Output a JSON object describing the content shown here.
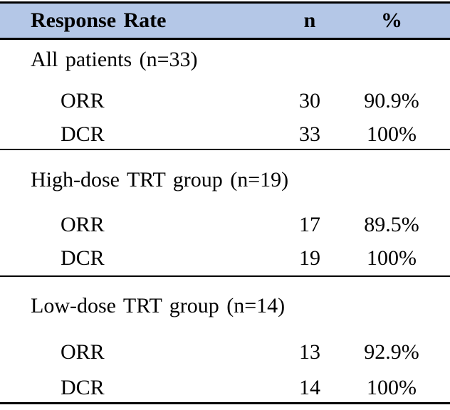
{
  "table": {
    "colors": {
      "header_bg": "#b4c7e7",
      "border": "#000000",
      "text": "#000000"
    },
    "header": {
      "label": "Response Rate",
      "n": "n",
      "pct": "%"
    },
    "sections": [
      {
        "title": "All patients (n=33)",
        "rows": [
          {
            "label": "ORR",
            "n": "30",
            "pct": "90.9%"
          },
          {
            "label": "DCR",
            "n": "33",
            "pct": "100%"
          }
        ]
      },
      {
        "title": "High-dose TRT group (n=19)",
        "rows": [
          {
            "label": "ORR",
            "n": "17",
            "pct": "89.5%"
          },
          {
            "label": "DCR",
            "n": "19",
            "pct": "100%"
          }
        ]
      },
      {
        "title": "Low-dose TRT group (n=14)",
        "rows": [
          {
            "label": "ORR",
            "n": "13",
            "pct": "92.9%"
          },
          {
            "label": "DCR",
            "n": "14",
            "pct": "100%"
          }
        ]
      }
    ]
  }
}
